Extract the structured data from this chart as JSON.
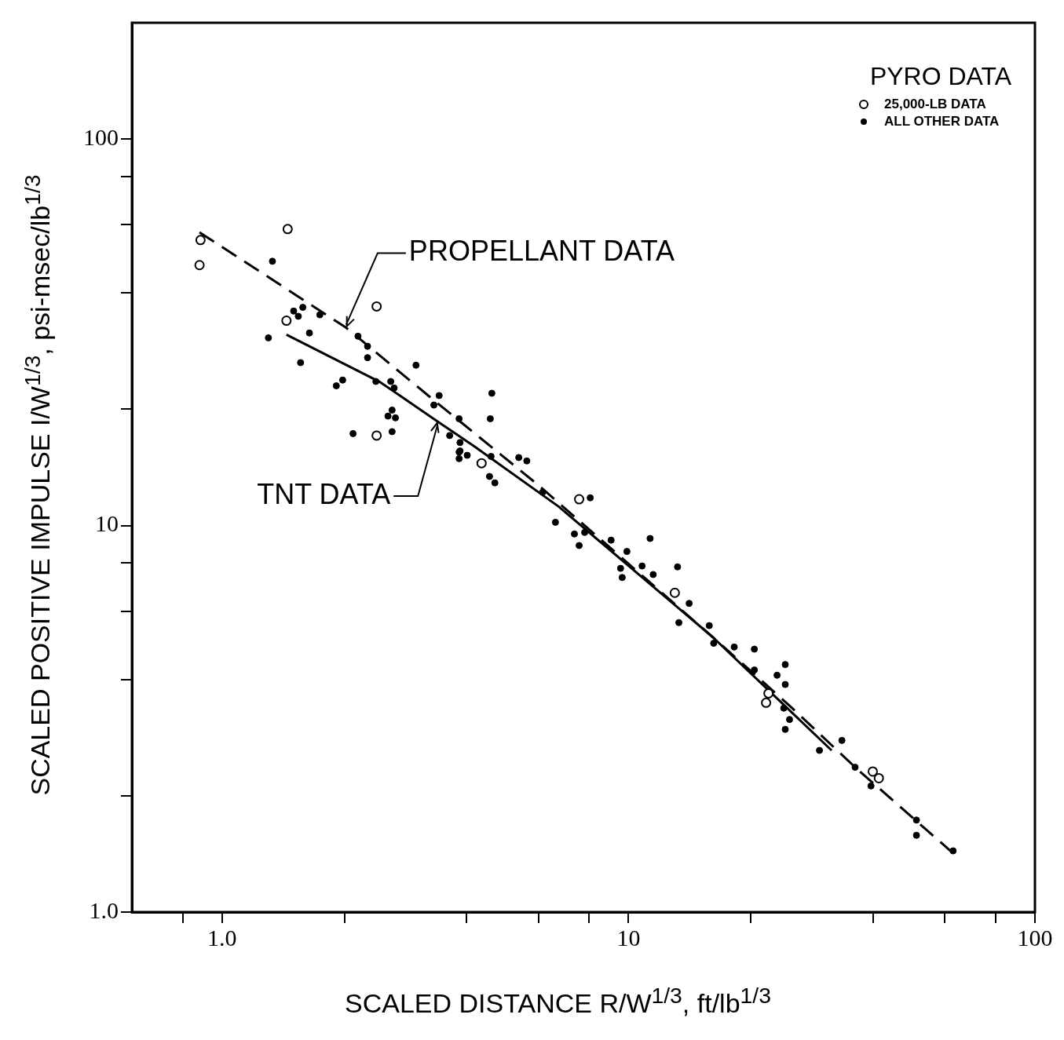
{
  "chart_data": {
    "type": "scatter",
    "xlabel": "SCALED DISTANCE R/W$^{1/3}$,  ft/lb$^{1/3}$",
    "ylabel": "SCALED POSITIVE IMPULSE I/W$^{1/3}$,  psi-msec/lb$^{1/3}$",
    "legend_title": "PYRO DATA",
    "legend": "top right",
    "log": "xy",
    "grid": false,
    "marker": "circle",
    "xlim": [
      0.6,
      100
    ],
    "ylim": [
      1,
      200
    ],
    "xticks": [
      {
        "value": 0.8,
        "label": null
      },
      {
        "value": 1,
        "label": "1.0"
      },
      {
        "value": 2,
        "label": null
      },
      {
        "value": 4,
        "label": null
      },
      {
        "value": 6,
        "label": null
      },
      {
        "value": 8,
        "label": null
      },
      10,
      {
        "value": 20,
        "label": null
      },
      {
        "value": 40,
        "label": null
      },
      {
        "value": 60,
        "label": null
      },
      {
        "value": 80,
        "label": null
      },
      100
    ],
    "yticks": [
      {
        "value": 1,
        "label": "1.0"
      },
      {
        "value": 2,
        "label": null
      },
      {
        "value": 4,
        "label": null
      },
      {
        "value": 6,
        "label": null
      },
      {
        "value": 8,
        "label": null
      },
      10,
      {
        "value": 20,
        "label": null
      },
      {
        "value": 40,
        "label": null
      },
      {
        "value": 60,
        "label": null
      },
      {
        "value": 80,
        "label": null
      },
      100
    ],
    "annotations": [
      {
        "text": "PROPELLANT DATA",
        "x": 2.02,
        "y": 32.5
      },
      {
        "text": "TNT DATA",
        "x": 3.39,
        "y": 18.6
      }
    ],
    "series": [
      {
        "name": "25,000-LB DATA",
        "color": "#000000",
        "x": [
          0.88,
          0.885,
          1.45,
          1.44,
          2.4,
          2.4,
          4.35,
          7.56,
          13.0,
          22.1,
          21.8,
          39.9,
          41.3
        ],
        "values": [
          47.2,
          54.8,
          58.5,
          33.9,
          36.9,
          17.1,
          14.5,
          11.7,
          6.7,
          3.68,
          3.48,
          2.31,
          2.22
        ]
      },
      {
        "name": "ALL OTHER DATA",
        "color": "#000000",
        "x": [
          1.33,
          1.3,
          1.56,
          1.64,
          1.5,
          1.54,
          1.58,
          1.74,
          2.16,
          2.28,
          2.28,
          3.0,
          2.39,
          2.6,
          2.65,
          3.42,
          3.32,
          1.91,
          1.98,
          2.62,
          2.56,
          2.67,
          2.62,
          2.1,
          3.63,
          3.85,
          3.83,
          4.01,
          3.83,
          4.61,
          4.57,
          3.83,
          3.85,
          4.59,
          4.55,
          4.69,
          5.62,
          5.37,
          8.05,
          6.61,
          7.36,
          7.56,
          7.8,
          11.3,
          9.56,
          9.65,
          9.91,
          13.2,
          11.5,
          14.1,
          13.3,
          15.8,
          6.15,
          9.06,
          10.8,
          16.2,
          18.2,
          20.4,
          24.3,
          23.2,
          24.3,
          20.4,
          24.1,
          24.9,
          24.3,
          29.5,
          33.5,
          36.1,
          39.5,
          51.1,
          51.1,
          62.9
        ],
        "values": [
          48.3,
          30.6,
          26.4,
          31.5,
          35.9,
          34.8,
          36.7,
          35.1,
          30.9,
          29.1,
          27.2,
          26.0,
          23.6,
          23.6,
          22.7,
          21.7,
          20.5,
          23.0,
          23.8,
          19.9,
          19.2,
          19.0,
          17.5,
          17.3,
          17.1,
          16.4,
          15.5,
          15.2,
          14.9,
          22.0,
          18.9,
          18.9,
          15.6,
          15.1,
          13.4,
          12.9,
          14.7,
          15.0,
          11.8,
          10.2,
          9.51,
          8.88,
          9.6,
          9.26,
          7.75,
          7.34,
          8.57,
          7.82,
          7.47,
          6.29,
          5.61,
          5.51,
          12.2,
          9.17,
          7.86,
          4.96,
          4.85,
          4.79,
          4.37,
          4.1,
          3.88,
          4.23,
          3.37,
          3.15,
          2.97,
          2.62,
          2.78,
          2.37,
          2.12,
          1.73,
          1.58,
          1.44
        ]
      },
      {
        "type": "line",
        "marker": "none",
        "line_style": "dashed",
        "color": "#000000",
        "x": [
          0.88,
          2.02,
          3.32,
          5.96,
          16.1,
          24.9,
          36.1,
          62.9
        ],
        "values": [
          57.4,
          32.5,
          21.1,
          12.8,
          5.15,
          3.42,
          2.37,
          1.42
        ]
      },
      {
        "type": "line",
        "marker": "none",
        "line_style": "solid",
        "color": "#000000",
        "x": [
          1.44,
          2.45,
          3.39,
          4.15,
          6.73,
          16.1,
          31.6
        ],
        "values": [
          31.2,
          23.5,
          18.6,
          16.1,
          11.2,
          5.15,
          2.62
        ]
      }
    ]
  }
}
